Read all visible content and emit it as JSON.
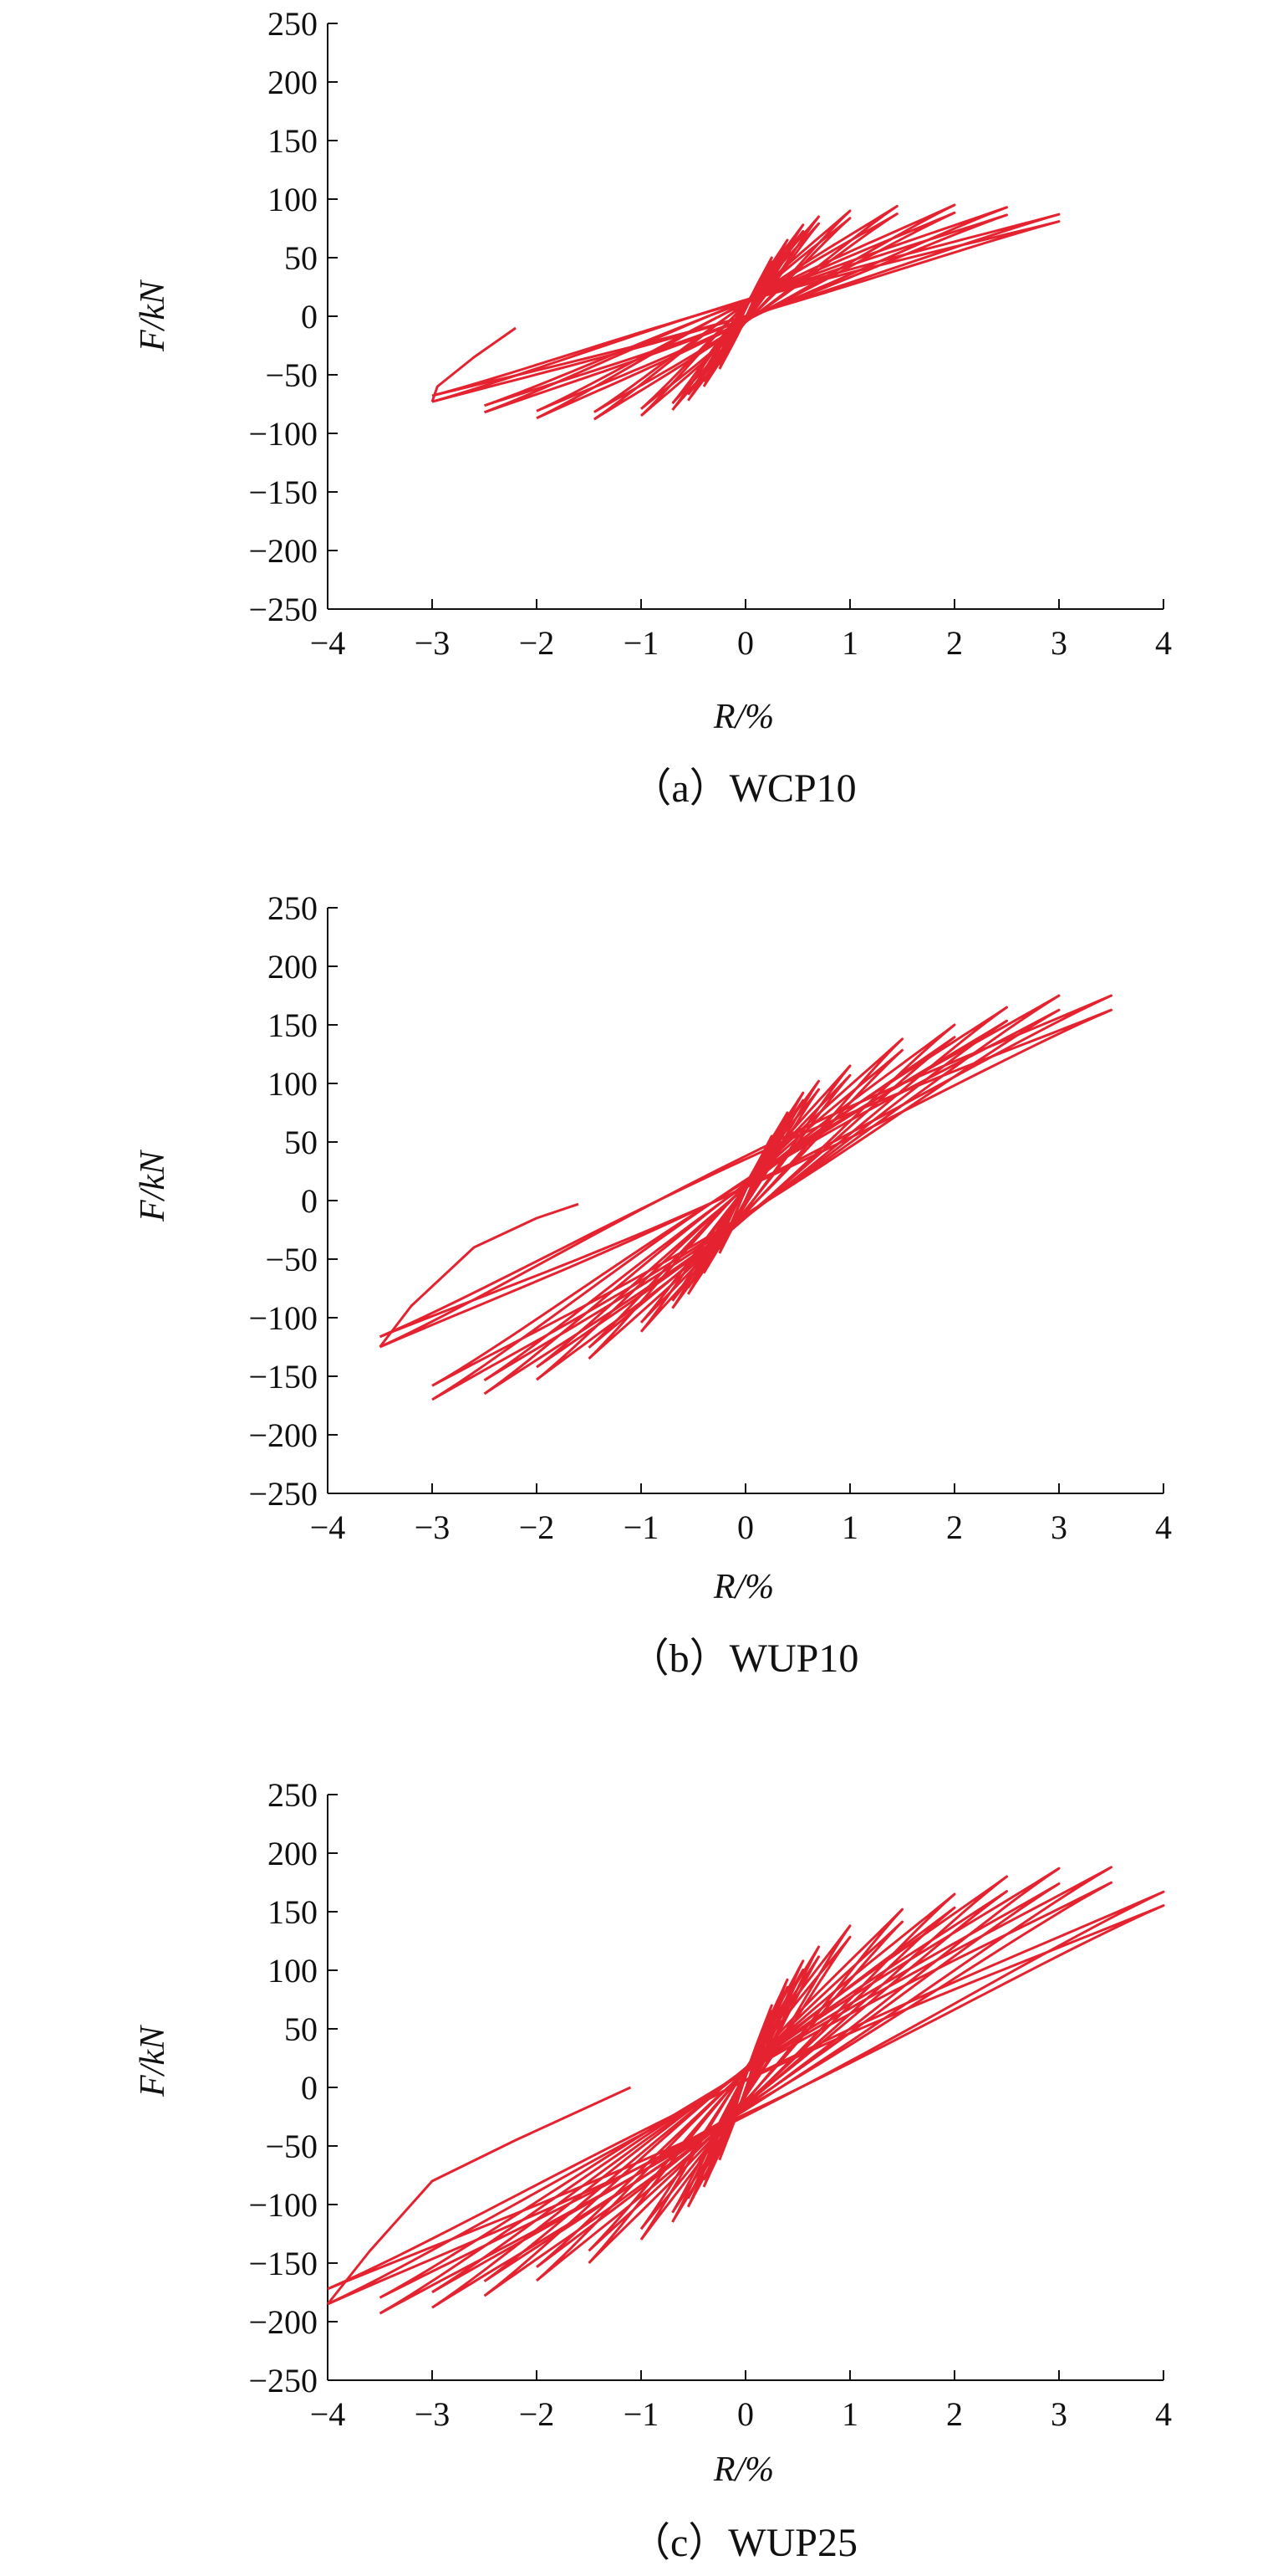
{
  "colors": {
    "curve": "#e52330",
    "axis": "#111111"
  },
  "chart_data": [
    {
      "type": "line",
      "caption": "（a）WCP10",
      "xlabel": "R/%",
      "ylabel": "F/kN",
      "xlim": [
        -4,
        4
      ],
      "ylim": [
        -250,
        250
      ],
      "x_ticks": [
        -4,
        -3,
        -2,
        -1,
        0,
        1,
        2,
        3,
        4
      ],
      "x_tick_labels": [
        "−4",
        "−3",
        "−2",
        "−1",
        "0",
        "1",
        "2",
        "3",
        "4"
      ],
      "y_ticks": [
        250,
        200,
        150,
        100,
        50,
        0,
        -50,
        -100,
        -150,
        -200,
        -250
      ],
      "y_tick_labels": [
        "250",
        "200",
        "150",
        "100",
        "50",
        "0",
        "−50",
        "−100",
        "−150",
        "−200",
        "−250"
      ],
      "grid": false,
      "series": [
        {
          "loops": [
            {
              "amplitude": 0.25,
              "pos_peak": 50,
              "neg_peak": -45
            },
            {
              "amplitude": 0.4,
              "pos_peak": 65,
              "neg_peak": -60
            },
            {
              "amplitude": 0.55,
              "pos_peak": 78,
              "neg_peak": -72
            },
            {
              "amplitude": 0.7,
              "pos_peak": 85,
              "neg_peak": -80
            },
            {
              "amplitude": 1.0,
              "pos_peak": 90,
              "neg_peak": -85
            },
            {
              "amplitude": 1.45,
              "pos_peak": 94,
              "neg_peak": -88
            },
            {
              "amplitude": 2.0,
              "pos_peak": 95,
              "neg_peak": -87
            },
            {
              "amplitude": 2.5,
              "pos_peak": 93,
              "neg_peak": -82
            },
            {
              "amplitude": 3.0,
              "pos_peak": 87,
              "neg_peak": -73
            }
          ],
          "tail": [
            [
              -3.0,
              -73
            ],
            [
              -2.95,
              -60
            ],
            [
              -2.6,
              -35
            ],
            [
              -2.2,
              -10
            ]
          ]
        }
      ]
    },
    {
      "type": "line",
      "caption": "（b）WUP10",
      "xlabel": "R/%",
      "ylabel": "F/kN",
      "xlim": [
        -4,
        4
      ],
      "ylim": [
        -250,
        250
      ],
      "x_ticks": [
        -4,
        -3,
        -2,
        -1,
        0,
        1,
        2,
        3,
        4
      ],
      "x_tick_labels": [
        "−4",
        "−3",
        "−2",
        "−1",
        "0",
        "1",
        "2",
        "3",
        "4"
      ],
      "y_ticks": [
        250,
        200,
        150,
        100,
        50,
        0,
        -50,
        -100,
        -150,
        -200,
        -250
      ],
      "y_tick_labels": [
        "250",
        "200",
        "150",
        "100",
        "50",
        "0",
        "−50",
        "−100",
        "−150",
        "−200",
        "−250"
      ],
      "grid": false,
      "series": [
        {
          "loops": [
            {
              "amplitude": 0.25,
              "pos_peak": 55,
              "neg_peak": -45
            },
            {
              "amplitude": 0.4,
              "pos_peak": 75,
              "neg_peak": -62
            },
            {
              "amplitude": 0.55,
              "pos_peak": 92,
              "neg_peak": -80
            },
            {
              "amplitude": 0.7,
              "pos_peak": 102,
              "neg_peak": -92
            },
            {
              "amplitude": 1.0,
              "pos_peak": 115,
              "neg_peak": -112
            },
            {
              "amplitude": 1.5,
              "pos_peak": 138,
              "neg_peak": -135
            },
            {
              "amplitude": 2.0,
              "pos_peak": 150,
              "neg_peak": -153
            },
            {
              "amplitude": 2.5,
              "pos_peak": 165,
              "neg_peak": -165
            },
            {
              "amplitude": 3.0,
              "pos_peak": 175,
              "neg_peak": -170
            },
            {
              "amplitude": 3.5,
              "pos_peak": 175,
              "neg_peak": -125
            }
          ],
          "tail": [
            [
              -3.5,
              -125
            ],
            [
              -3.2,
              -90
            ],
            [
              -2.6,
              -40
            ],
            [
              -2.0,
              -15
            ],
            [
              -1.6,
              -3
            ]
          ]
        }
      ]
    },
    {
      "type": "line",
      "caption": "（c）WUP25",
      "xlabel": "R/%",
      "ylabel": "F/kN",
      "xlim": [
        -4,
        4
      ],
      "ylim": [
        -250,
        250
      ],
      "x_ticks": [
        -4,
        -3,
        -2,
        -1,
        0,
        1,
        2,
        3,
        4
      ],
      "x_tick_labels": [
        "−4",
        "−3",
        "−2",
        "−1",
        "0",
        "1",
        "2",
        "3",
        "4"
      ],
      "y_ticks": [
        250,
        200,
        150,
        100,
        50,
        0,
        -50,
        -100,
        -150,
        -200,
        -250
      ],
      "y_tick_labels": [
        "250",
        "200",
        "150",
        "100",
        "50",
        "0",
        "−50",
        "−100",
        "−150",
        "−200",
        "−250"
      ],
      "grid": false,
      "series": [
        {
          "loops": [
            {
              "amplitude": 0.25,
              "pos_peak": 70,
              "neg_peak": -62
            },
            {
              "amplitude": 0.4,
              "pos_peak": 92,
              "neg_peak": -85
            },
            {
              "amplitude": 0.55,
              "pos_peak": 108,
              "neg_peak": -102
            },
            {
              "amplitude": 0.7,
              "pos_peak": 120,
              "neg_peak": -115
            },
            {
              "amplitude": 1.0,
              "pos_peak": 138,
              "neg_peak": -130
            },
            {
              "amplitude": 1.5,
              "pos_peak": 152,
              "neg_peak": -150
            },
            {
              "amplitude": 2.0,
              "pos_peak": 165,
              "neg_peak": -165
            },
            {
              "amplitude": 2.5,
              "pos_peak": 180,
              "neg_peak": -178
            },
            {
              "amplitude": 3.0,
              "pos_peak": 187,
              "neg_peak": -188
            },
            {
              "amplitude": 3.5,
              "pos_peak": 188,
              "neg_peak": -193
            },
            {
              "amplitude": 4.0,
              "pos_peak": 167,
              "neg_peak": -185
            }
          ],
          "tail": [
            [
              -4.0,
              -185
            ],
            [
              -3.6,
              -140
            ],
            [
              -3.0,
              -80
            ],
            [
              -2.2,
              -45
            ],
            [
              -1.1,
              0
            ]
          ]
        }
      ]
    }
  ]
}
